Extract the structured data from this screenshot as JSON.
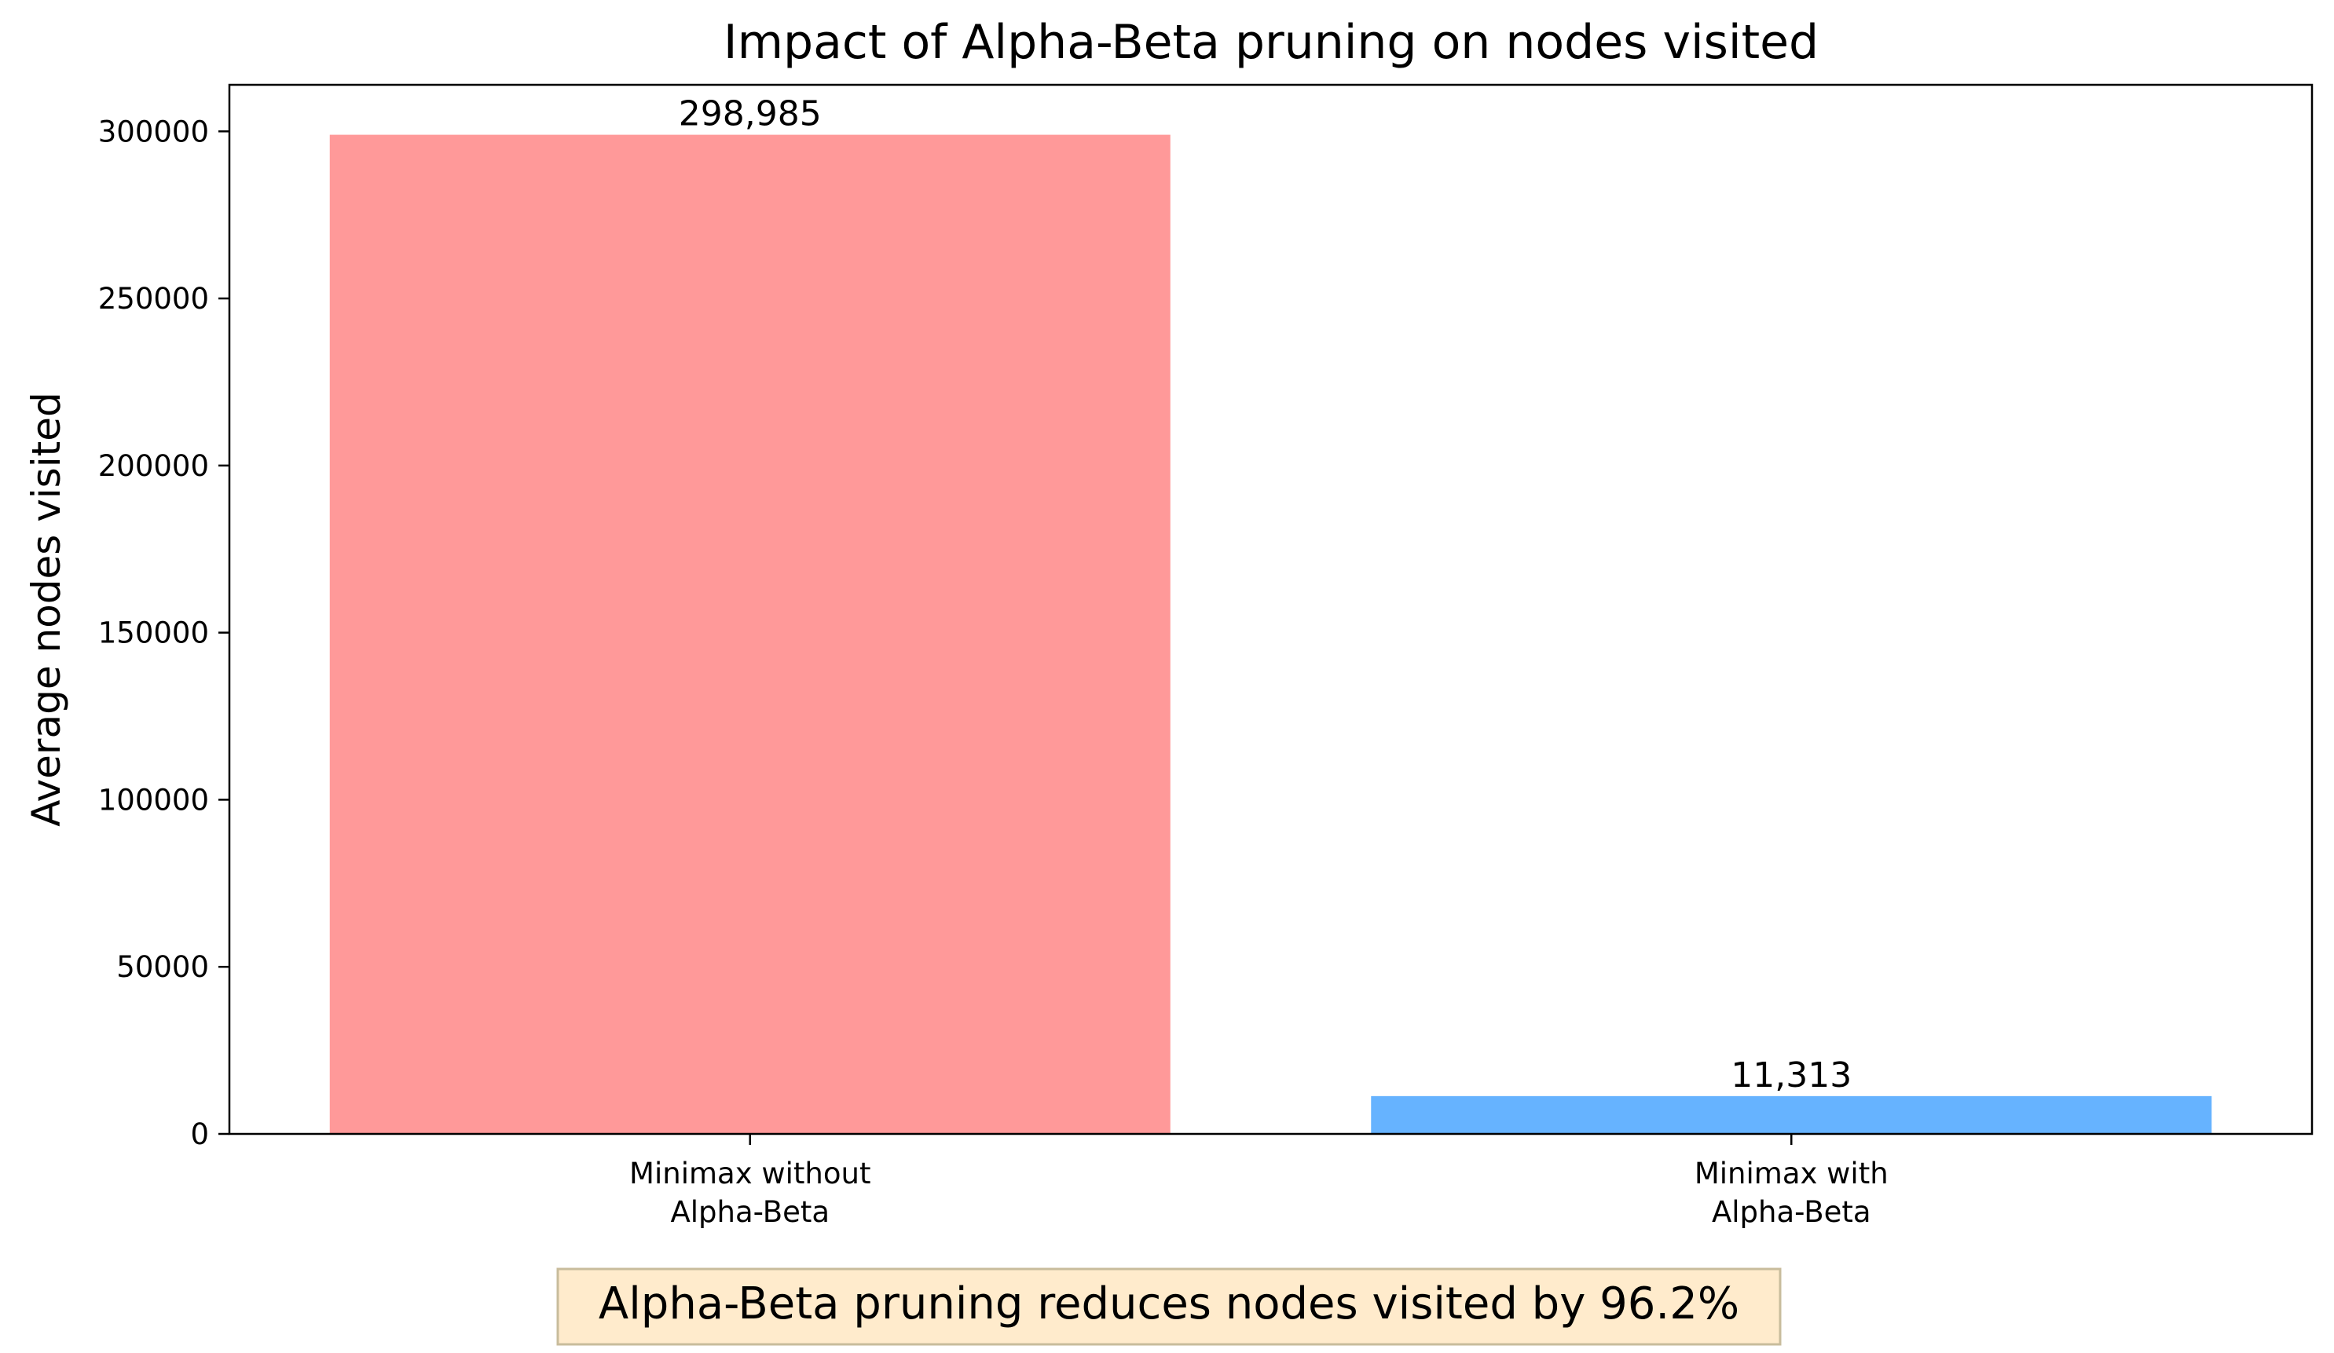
{
  "chart_data": {
    "type": "bar",
    "title": "Impact of Alpha-Beta pruning on nodes visited",
    "xlabel": "",
    "ylabel": "Average nodes visited",
    "categories": [
      [
        "Minimax without",
        "Alpha-Beta"
      ],
      [
        "Minimax with",
        "Alpha-Beta"
      ]
    ],
    "values": [
      298985,
      11313
    ],
    "value_labels": [
      "298,985",
      "11,313"
    ],
    "colors": [
      "#ff9999",
      "#66b3ff"
    ],
    "ylim": [
      0,
      313929
    ],
    "yticks": [
      0,
      50000,
      100000,
      150000,
      200000,
      250000,
      300000
    ],
    "ytick_labels": [
      "0",
      "50000",
      "100000",
      "150000",
      "200000",
      "250000",
      "300000"
    ],
    "grid": false,
    "legend": "none",
    "annotation": {
      "text": "Alpha-Beta pruning reduces nodes visited by 96.2%",
      "background": "#ffebcc",
      "border": "#c8bc9c"
    }
  }
}
